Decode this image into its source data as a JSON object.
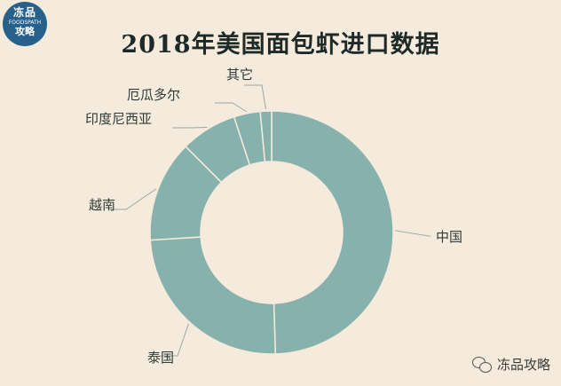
{
  "logo": {
    "line1": "冻品",
    "line2": "FOODSPATH",
    "line3": "攻略"
  },
  "watermark": {
    "text": "冻品攻略",
    "icon": "wechat-icon"
  },
  "colors": {
    "slice": "#87b1ac",
    "background": "#f5ebdc",
    "leader": "#9aa7a5"
  },
  "chart_data": {
    "type": "pie",
    "title": "2018年美国面包虾进口数据",
    "donut": true,
    "categories": [
      "中国",
      "泰国",
      "越南",
      "印度尼西亚",
      "厄瓜多尔",
      "其它"
    ],
    "values": [
      49.5,
      24.5,
      13.5,
      7.5,
      3.5,
      1.5
    ]
  }
}
